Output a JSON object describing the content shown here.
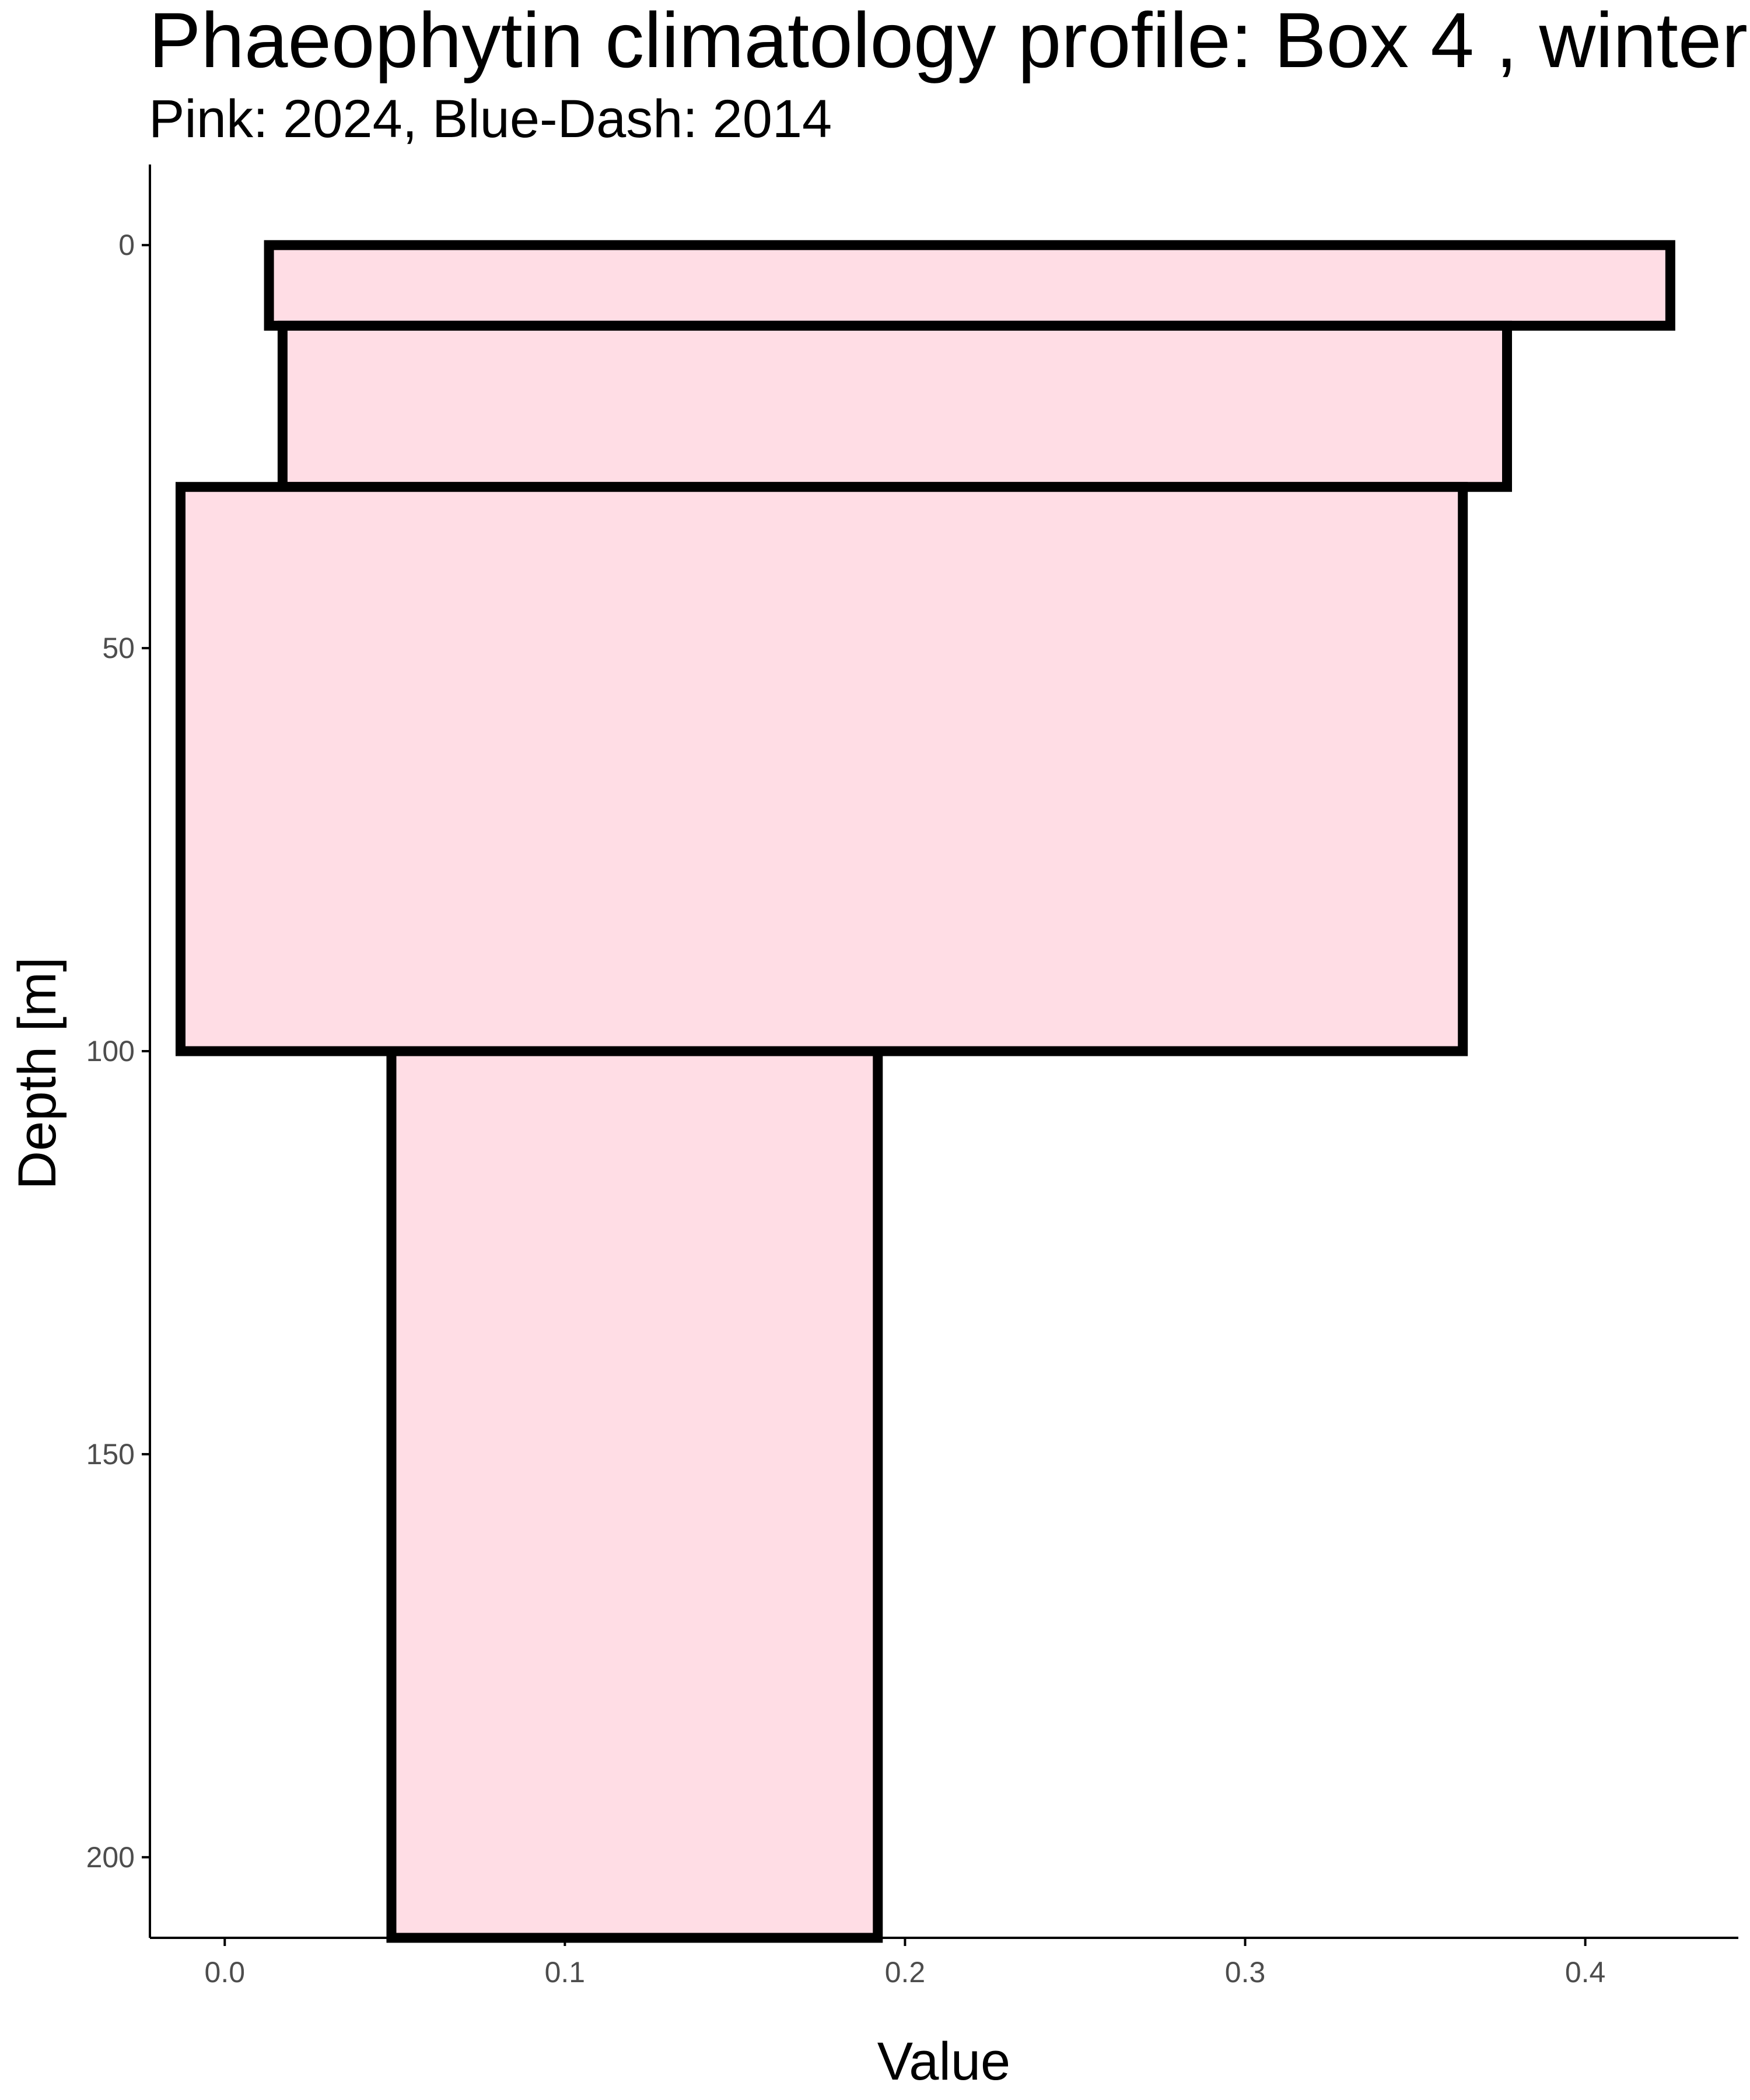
{
  "chart_data": {
    "type": "bar",
    "orientation": "horizontal-depth-profile",
    "title": "Phaeophytin climatology profile: Box 4 , winter",
    "subtitle": "Pink: 2024, Blue-Dash: 2014",
    "xlabel": "Value",
    "ylabel": "Depth [m]",
    "xlim": [
      -0.022,
      0.445
    ],
    "ylim": [
      -10,
      210
    ],
    "y_reversed": true,
    "xticks": [
      0.0,
      0.1,
      0.2,
      0.3,
      0.4
    ],
    "xtick_labels": [
      "0.0",
      "0.1",
      "0.2",
      "0.3",
      "0.4"
    ],
    "yticks": [
      0,
      50,
      100,
      150,
      200
    ],
    "ytick_labels": [
      "0",
      "50",
      "100",
      "150",
      "200"
    ],
    "grid": false,
    "colors": {
      "fill": "#FFDDE5",
      "stroke": "#000000",
      "axis": "#000000",
      "tick_text": "#4d4d4d"
    },
    "bars": [
      {
        "depth_top": 0,
        "depth_bottom": 10,
        "x_min": 0.013,
        "x_max": 0.425
      },
      {
        "depth_top": 10,
        "depth_bottom": 30,
        "x_min": 0.017,
        "x_max": 0.377
      },
      {
        "depth_top": 30,
        "depth_bottom": 100,
        "x_min": -0.013,
        "x_max": 0.364
      },
      {
        "depth_top": 100,
        "depth_bottom": 210,
        "x_min": 0.049,
        "x_max": 0.192
      }
    ]
  }
}
